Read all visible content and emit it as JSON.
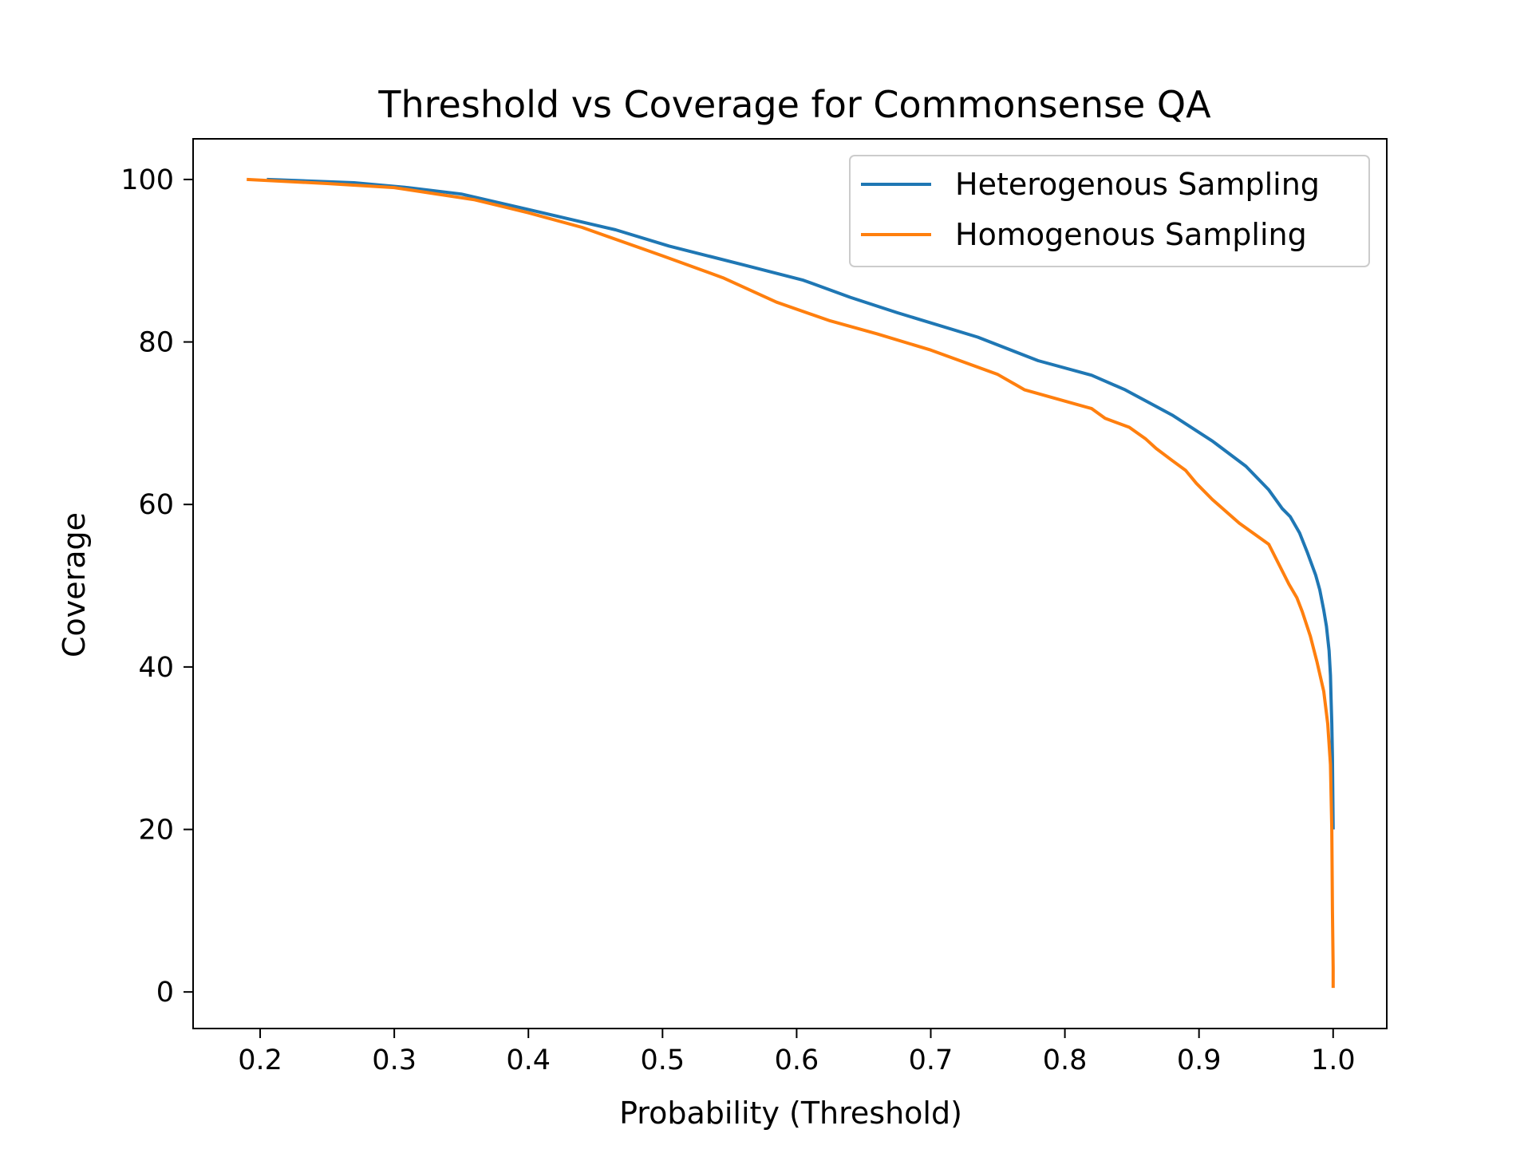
{
  "chart_data": {
    "type": "line",
    "title": "Threshold vs Coverage for Commonsense QA",
    "xlabel": "Probability (Threshold)",
    "ylabel": "Coverage",
    "xlim": [
      0.15,
      1.04
    ],
    "ylim": [
      -4.5,
      105
    ],
    "xticks": [
      0.2,
      0.3,
      0.4,
      0.5,
      0.6,
      0.7,
      0.8,
      0.9,
      1.0
    ],
    "xtick_labels": [
      "0.2",
      "0.3",
      "0.4",
      "0.5",
      "0.6",
      "0.7",
      "0.8",
      "0.9",
      "1.0"
    ],
    "yticks": [
      0,
      20,
      40,
      60,
      80,
      100
    ],
    "ytick_labels": [
      "0",
      "20",
      "40",
      "60",
      "80",
      "100"
    ],
    "grid": false,
    "legend_position": "top-right",
    "series": [
      {
        "name": "Heterogenous Sampling",
        "color": "#1f77b4",
        "x": [
          0.205,
          0.27,
          0.31,
          0.35,
          0.4,
          0.465,
          0.505,
          0.56,
          0.605,
          0.64,
          0.675,
          0.735,
          0.78,
          0.82,
          0.845,
          0.88,
          0.91,
          0.935,
          0.952,
          0.962,
          0.968,
          0.975,
          0.981,
          0.987,
          0.99,
          0.993,
          0.995,
          0.997,
          0.998,
          0.9985,
          0.999,
          0.9995,
          0.9998,
          1.0
        ],
        "y": [
          100,
          99.6,
          99,
          98.2,
          96.3,
          93.8,
          91.8,
          89.5,
          87.6,
          85.5,
          83.6,
          80.6,
          77.7,
          75.9,
          74.1,
          71,
          67.8,
          64.7,
          61.8,
          59.5,
          58.5,
          56.5,
          54,
          51.3,
          49.5,
          47,
          45,
          42,
          39,
          36,
          33,
          29,
          24,
          20
        ]
      },
      {
        "name": "Homogenous Sampling",
        "color": "#ff7f0e",
        "x": [
          0.19,
          0.25,
          0.3,
          0.36,
          0.4,
          0.44,
          0.5,
          0.545,
          0.585,
          0.625,
          0.66,
          0.7,
          0.75,
          0.77,
          0.82,
          0.83,
          0.848,
          0.86,
          0.868,
          0.88,
          0.89,
          0.898,
          0.91,
          0.93,
          0.952,
          0.96,
          0.967,
          0.973,
          0.977,
          0.983,
          0.988,
          0.993,
          0.996,
          0.998,
          0.999,
          0.9995,
          1.0,
          1.0
        ],
        "y": [
          100,
          99.5,
          99,
          97.5,
          95.9,
          94.1,
          90.6,
          87.9,
          84.9,
          82.6,
          81,
          79,
          76,
          74.1,
          71.8,
          70.6,
          69.5,
          68.1,
          66.9,
          65.4,
          64.2,
          62.6,
          60.6,
          57.7,
          55.1,
          52.5,
          50.2,
          48.5,
          46.8,
          43.8,
          40.6,
          37,
          33,
          28,
          20,
          10,
          3,
          0.5
        ]
      }
    ]
  }
}
